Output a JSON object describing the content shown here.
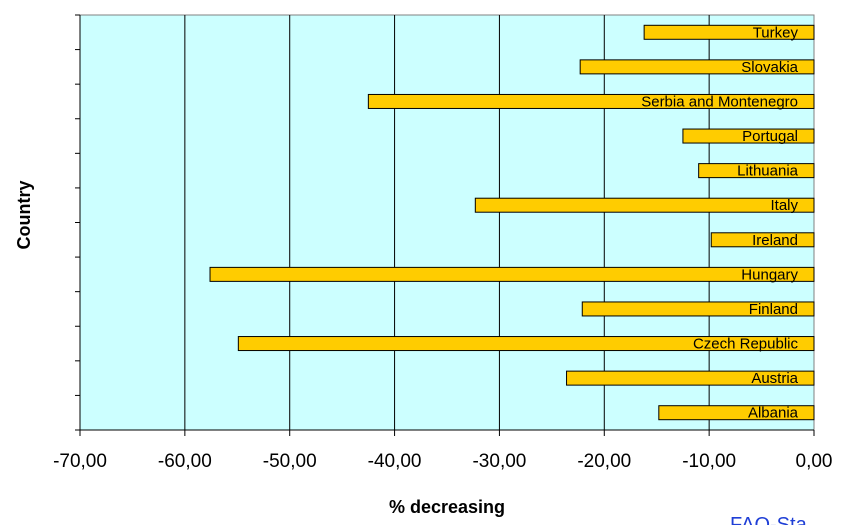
{
  "chart_data": {
    "type": "bar",
    "orientation": "horizontal",
    "categories": [
      "Turkey",
      "Slovakia",
      "Serbia and Montenegro",
      "Portugal",
      "Lithuania",
      "Italy",
      "Ireland",
      "Hungary",
      "Finland",
      "Czech Republic",
      "Austria",
      "Albania"
    ],
    "values": [
      -16.2,
      -22.3,
      -42.5,
      -12.5,
      -11.0,
      -32.3,
      -9.8,
      -57.6,
      -22.1,
      -54.9,
      -23.6,
      -14.8
    ],
    "xlabel": "% decreasing",
    "ylabel": "Country",
    "xlim": [
      -70,
      0
    ],
    "xticks": [
      "-70,00",
      "-60,00",
      "-50,00",
      "-40,00",
      "-30,00",
      "-20,00",
      "-10,00",
      "0,00"
    ],
    "grid": "vertical",
    "plot_background": "#ccffff",
    "bar_color": "#ffcc00",
    "bar_edge_color": "#000000"
  },
  "source_label": "FAO-Sta"
}
